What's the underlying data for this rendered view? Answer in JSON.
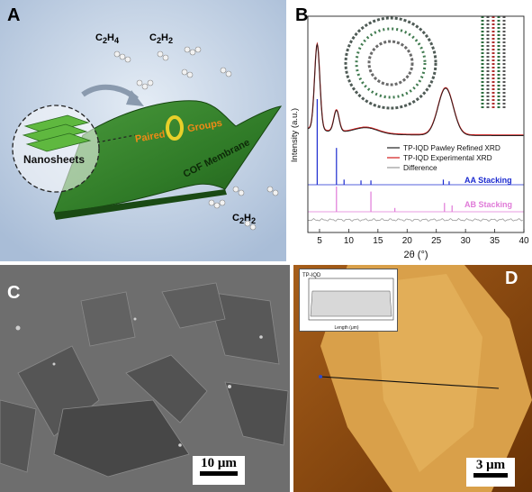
{
  "panel_a": {
    "label": "A",
    "molecules": [
      "C2H4",
      "C2H2"
    ],
    "bottom_molecule": "C2H2",
    "nanosheets_label": "Nanosheets",
    "paired_label": "Paired",
    "groups_label": "Groups",
    "membrane_label": "COF Membrane"
  },
  "panel_b": {
    "label": "B",
    "ylabel": "Intensity (a.u.)",
    "xlabel": "2θ (°)",
    "legend": [
      "TP-IQD Pawley Refined XRD",
      "TP-IQD Experimental XRD",
      "Difference"
    ],
    "aa_label": "AA Stacking",
    "ab_label": "AB Stacking",
    "colors": {
      "experimental": "#d11a1a",
      "pawley": "#222222",
      "aa": "#1c2bd0",
      "ab": "#e07ad8",
      "difference": "#9a9a9a"
    }
  },
  "panel_c": {
    "label": "C",
    "scale_text": "10 μm"
  },
  "panel_d": {
    "label": "D",
    "scale_text": "3 μm",
    "inset_title": "TP-IQD",
    "inset_xlabel": "Length (μm)"
  },
  "chart_data": {
    "type": "line",
    "xlabel": "2θ (°)",
    "ylabel": "Intensity (a.u.)",
    "xlim": [
      3,
      40
    ],
    "xticks": [
      5,
      10,
      15,
      20,
      25,
      30,
      35,
      40
    ],
    "series": [
      {
        "name": "TP-IQD Experimental XRD",
        "peaks": [
          {
            "x": 4.6,
            "rel": 1.0
          },
          {
            "x": 7.9,
            "rel": 0.25
          },
          {
            "x": 26.6,
            "rel": 0.55
          }
        ]
      },
      {
        "name": "TP-IQD Pawley Refined XRD",
        "peaks": [
          {
            "x": 4.6,
            "rel": 1.0
          },
          {
            "x": 7.9,
            "rel": 0.25
          },
          {
            "x": 26.6,
            "rel": 0.55
          }
        ]
      },
      {
        "name": "Difference",
        "peaks": []
      },
      {
        "name": "AA Stacking",
        "peaks": [
          {
            "x": 4.6,
            "rel": 1.0
          },
          {
            "x": 7.9,
            "rel": 0.43
          },
          {
            "x": 9.2,
            "rel": 0.06
          },
          {
            "x": 12.1,
            "rel": 0.05
          },
          {
            "x": 13.8,
            "rel": 0.05
          },
          {
            "x": 26.2,
            "rel": 0.06
          },
          {
            "x": 27.2,
            "rel": 0.04
          }
        ]
      },
      {
        "name": "AB Stacking",
        "peaks": [
          {
            "x": 7.9,
            "rel": 1.0
          },
          {
            "x": 13.8,
            "rel": 0.8
          },
          {
            "x": 17.9,
            "rel": 0.15
          },
          {
            "x": 26.4,
            "rel": 0.35
          },
          {
            "x": 27.7,
            "rel": 0.25
          }
        ]
      }
    ]
  }
}
